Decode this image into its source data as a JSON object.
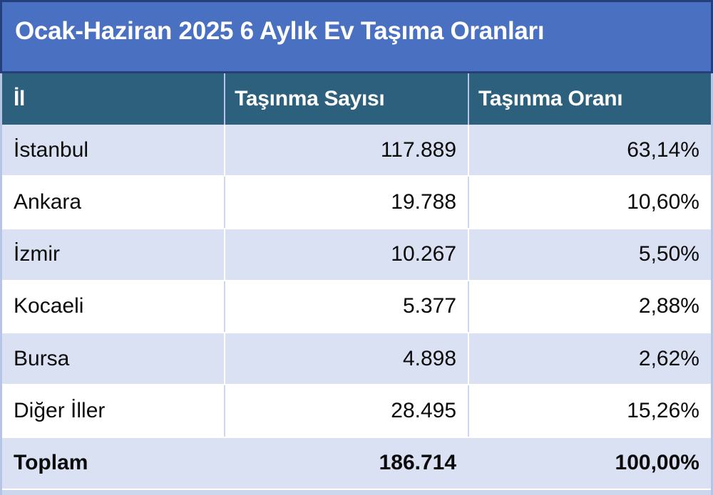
{
  "title": "Ocak-Haziran 2025 6 Aylık Ev Taşıma Oranları",
  "chart_data": {
    "type": "table",
    "title": "Ocak-Haziran 2025 6 Aylık Ev Taşıma Oranları",
    "columns": [
      "İl",
      "Taşınma Sayısı",
      "Taşınma Oranı"
    ],
    "rows": [
      [
        "İstanbul",
        "117.889",
        "63,14%"
      ],
      [
        "Ankara",
        "19.788",
        "10,60%"
      ],
      [
        "İzmir",
        "10.267",
        "5,50%"
      ],
      [
        "Kocaeli",
        "5.377",
        "2,88%"
      ],
      [
        "Bursa",
        "4.898",
        "2,62%"
      ],
      [
        "Diğer İller",
        "28.495",
        "15,26%"
      ]
    ],
    "total_row": [
      "Toplam",
      "186.714",
      "100,00%"
    ],
    "numeric": {
      "counts": [
        117889,
        19788,
        10267,
        5377,
        4898,
        28495
      ],
      "shares_percent": [
        63.14,
        10.6,
        5.5,
        2.88,
        2.62,
        15.26
      ],
      "total_count": 186714,
      "total_share_percent": 100.0
    }
  },
  "colors": {
    "title_bg": "#4A70C2",
    "title_border": "#24407C",
    "title_text": "#FFFFFF",
    "header_bg": "#2D607D",
    "header_text": "#FFFFFF",
    "row_alt_bg": "#D9E1F2",
    "row_bg": "#FFFFFF",
    "body_text": "#0B0B0B",
    "frame_border": "#B6C5E6",
    "bottom_strip": "#CCD6EC"
  }
}
